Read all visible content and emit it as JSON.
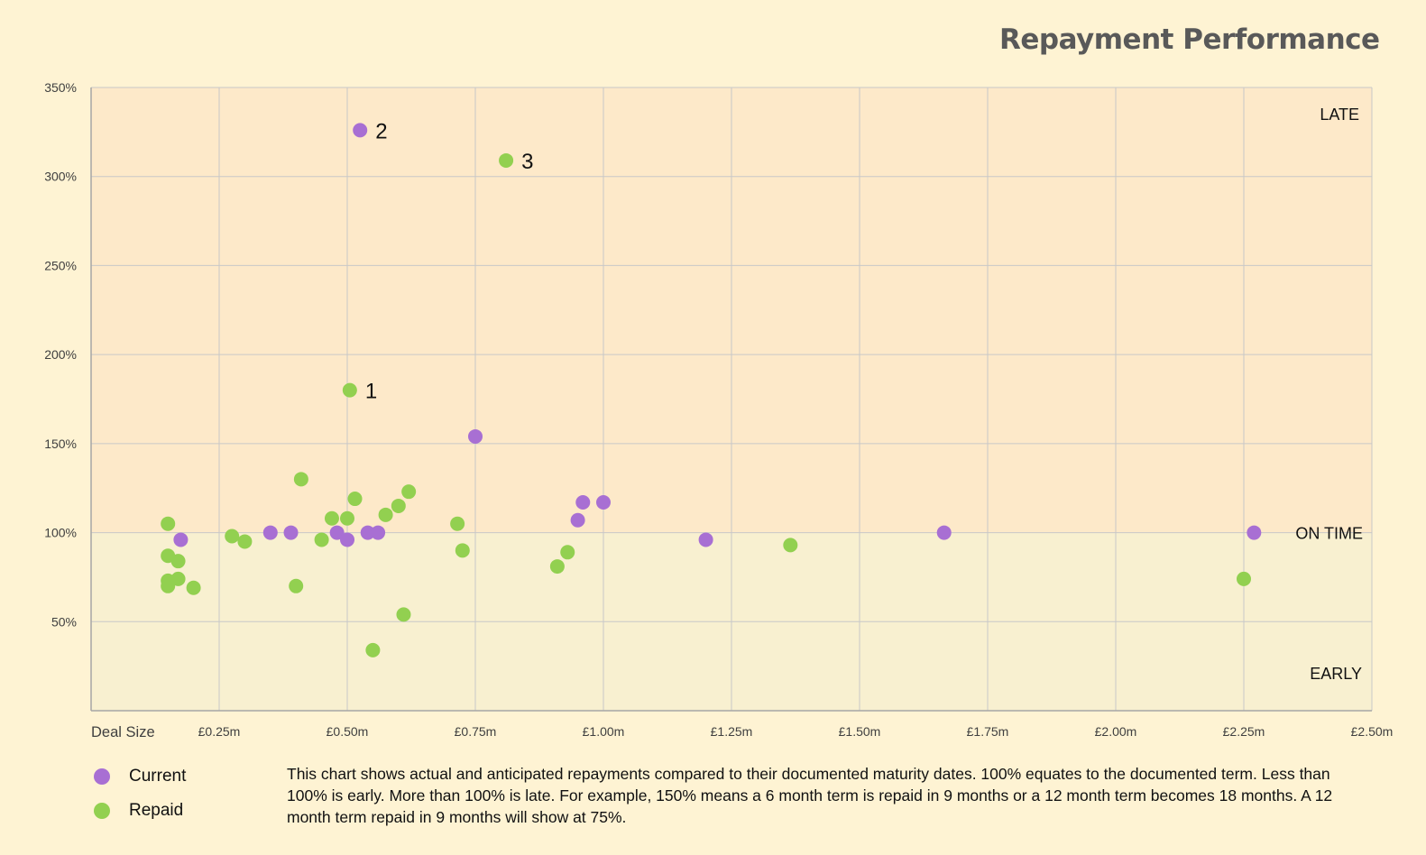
{
  "chart_data": {
    "type": "scatter",
    "title": "Repayment Performance",
    "xlabel": "Deal Size",
    "ylabel": "",
    "xlim": [
      0,
      2.5
    ],
    "ylim": [
      0,
      350
    ],
    "x_ticks": [
      0.25,
      0.5,
      0.75,
      1.0,
      1.25,
      1.5,
      1.75,
      2.0,
      2.25,
      2.5
    ],
    "x_tick_labels": [
      "£0.25m",
      "£0.50m",
      "£0.75m",
      "£1.00m",
      "£1.25m",
      "£1.50m",
      "£1.75m",
      "£2.00m",
      "£2.25m",
      "£2.50m"
    ],
    "y_ticks": [
      50,
      100,
      150,
      200,
      250,
      300,
      350
    ],
    "y_tick_labels": [
      "50%",
      "100%",
      "150%",
      "200%",
      "250%",
      "300%",
      "350%"
    ],
    "grid": true,
    "legend_position": "bottom-left",
    "regions": [
      {
        "label": "LATE",
        "from": 100,
        "to": 350,
        "color": "#fde9c9"
      },
      {
        "label": "EARLY",
        "from": 0,
        "to": 100,
        "color": "#f8f0d0"
      }
    ],
    "reference_label": {
      "label": "ON TIME",
      "y": 100
    },
    "series": [
      {
        "name": "Current",
        "color": "#a86fd3",
        "points": [
          [
            0.175,
            96
          ],
          [
            0.35,
            100
          ],
          [
            0.39,
            100
          ],
          [
            0.48,
            100
          ],
          [
            0.5,
            96
          ],
          [
            0.525,
            326
          ],
          [
            0.54,
            100
          ],
          [
            0.56,
            100
          ],
          [
            0.75,
            154
          ],
          [
            0.95,
            107
          ],
          [
            0.96,
            117
          ],
          [
            1.0,
            117
          ],
          [
            1.2,
            96
          ],
          [
            1.665,
            100
          ],
          [
            2.27,
            100
          ]
        ]
      },
      {
        "name": "Repaid",
        "color": "#92d050",
        "points": [
          [
            0.15,
            105
          ],
          [
            0.15,
            87
          ],
          [
            0.15,
            73
          ],
          [
            0.15,
            70
          ],
          [
            0.17,
            84
          ],
          [
            0.17,
            74
          ],
          [
            0.2,
            69
          ],
          [
            0.275,
            98
          ],
          [
            0.3,
            95
          ],
          [
            0.4,
            70
          ],
          [
            0.41,
            130
          ],
          [
            0.45,
            96
          ],
          [
            0.47,
            108
          ],
          [
            0.5,
            108
          ],
          [
            0.505,
            180
          ],
          [
            0.515,
            119
          ],
          [
            0.55,
            34
          ],
          [
            0.575,
            110
          ],
          [
            0.6,
            115
          ],
          [
            0.61,
            54
          ],
          [
            0.62,
            123
          ],
          [
            0.715,
            105
          ],
          [
            0.725,
            90
          ],
          [
            0.81,
            309
          ],
          [
            0.91,
            81
          ],
          [
            0.93,
            89
          ],
          [
            1.365,
            93
          ],
          [
            2.25,
            74
          ]
        ]
      }
    ],
    "annotations": [
      {
        "text": "1",
        "x": 0.505,
        "y": 180
      },
      {
        "text": "2",
        "x": 0.525,
        "y": 326
      },
      {
        "text": "3",
        "x": 0.81,
        "y": 309
      }
    ]
  },
  "legend": [
    {
      "label": "Current",
      "color": "#a86fd3"
    },
    {
      "label": "Repaid",
      "color": "#92d050"
    }
  ],
  "note": "This chart shows actual and anticipated repayments compared to their documented maturity dates.  100% equates to the documented term.  Less than 100% is early.  More than 100% is late.  For example, 150% means a 6 month term is repaid in 9 months or a 12 month term becomes 18 months.  A 12 month term repaid in 9 months will show at 75%."
}
